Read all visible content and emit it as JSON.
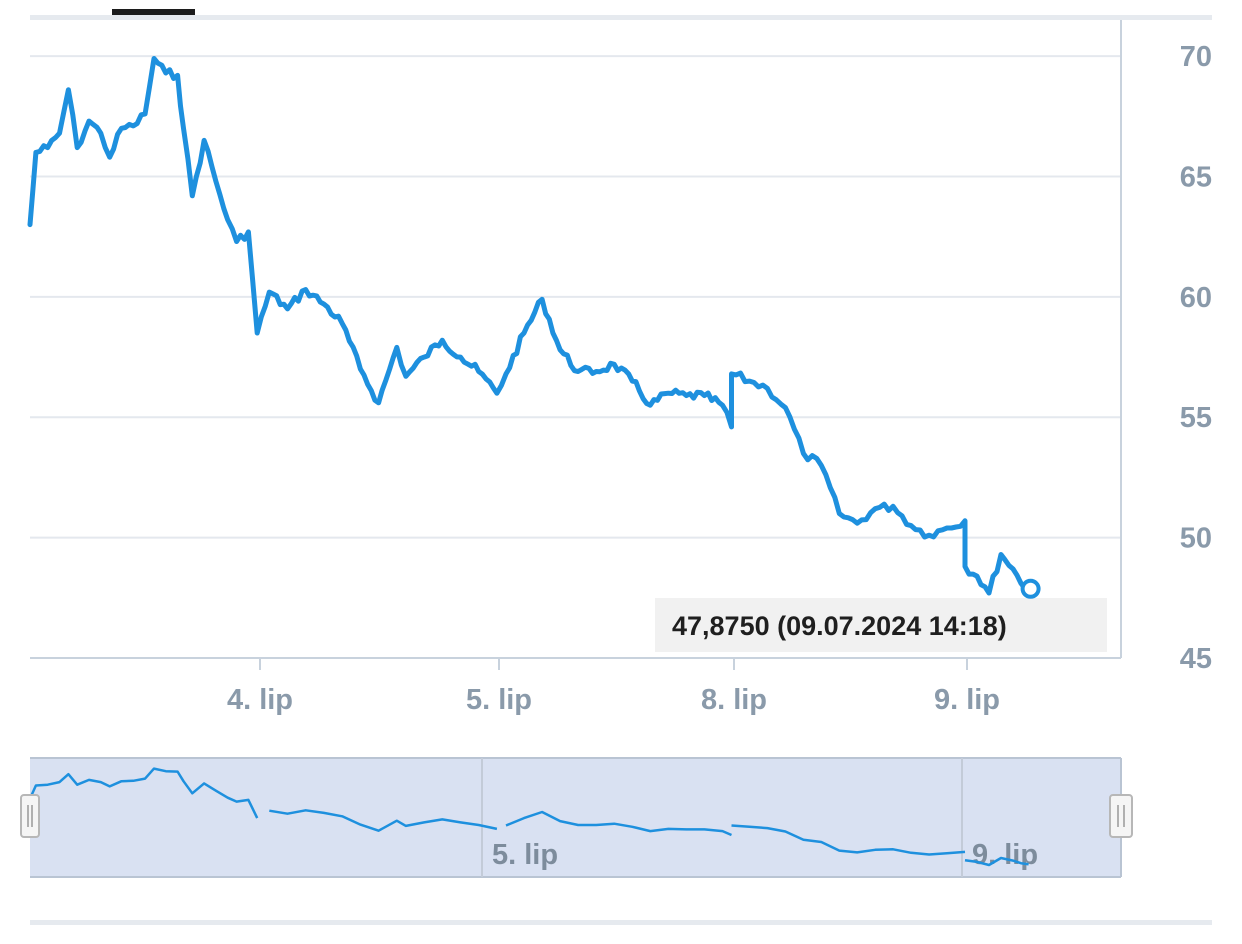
{
  "chart_data": {
    "type": "line",
    "title": "",
    "xlabel": "",
    "ylabel": "",
    "x_tick_labels": [
      "4. lip",
      "5. lip",
      "8. lip",
      "9. lip"
    ],
    "y_ticks": [
      70,
      65,
      60,
      55,
      50,
      45
    ],
    "ylim": [
      45,
      71.5
    ],
    "grid": true,
    "y_axis_side": "right",
    "series": [
      {
        "color": "#1e90de",
        "points": [
          [
            "03.07.2024 09:00",
            63.0
          ],
          [
            "03.07.2024 09:20",
            66.0
          ],
          [
            "03.07.2024 10:00",
            66.2
          ],
          [
            "03.07.2024 10:40",
            66.8
          ],
          [
            "03.07.2024 11:10",
            68.6
          ],
          [
            "03.07.2024 11:40",
            66.2
          ],
          [
            "03.07.2024 12:20",
            67.3
          ],
          [
            "03.07.2024 13:00",
            66.8
          ],
          [
            "03.07.2024 13:30",
            65.8
          ],
          [
            "03.07.2024 14:10",
            67.0
          ],
          [
            "03.07.2024 14:50",
            67.1
          ],
          [
            "03.07.2024 15:30",
            67.6
          ],
          [
            "03.07.2024 16:00",
            69.9
          ],
          [
            "03.07.2024 16:40",
            69.3
          ],
          [
            "03.07.2024 17:20",
            69.2
          ],
          [
            "03.07.2024 17:40",
            67.0
          ],
          [
            "03.07.2024 18:10",
            64.2
          ],
          [
            "03.07.2024 18:50",
            66.5
          ],
          [
            "03.07.2024 19:30",
            64.8
          ],
          [
            "03.07.2024 20:10",
            63.2
          ],
          [
            "03.07.2024 20:40",
            62.3
          ],
          [
            "03.07.2024 21:20",
            62.7
          ],
          [
            "03.07.2024 21:50",
            58.5
          ],
          [
            "04.07.2024 09:30",
            60.2
          ],
          [
            "04.07.2024 10:30",
            59.5
          ],
          [
            "04.07.2024 11:30",
            60.3
          ],
          [
            "04.07.2024 12:30",
            59.7
          ],
          [
            "04.07.2024 13:30",
            58.9
          ],
          [
            "04.07.2024 14:30",
            57.0
          ],
          [
            "04.07.2024 15:30",
            55.6
          ],
          [
            "04.07.2024 16:30",
            57.9
          ],
          [
            "04.07.2024 17:00",
            56.7
          ],
          [
            "04.07.2024 18:00",
            57.5
          ],
          [
            "04.07.2024 19:00",
            58.2
          ],
          [
            "04.07.2024 20:00",
            57.5
          ],
          [
            "04.07.2024 21:00",
            56.9
          ],
          [
            "04.07.2024 22:00",
            56.0
          ],
          [
            "05.07.2024 09:30",
            56.8
          ],
          [
            "05.07.2024 10:30",
            58.5
          ],
          [
            "05.07.2024 11:30",
            59.9
          ],
          [
            "05.07.2024 12:30",
            57.8
          ],
          [
            "05.07.2024 13:30",
            56.9
          ],
          [
            "05.07.2024 14:30",
            56.9
          ],
          [
            "05.07.2024 15:30",
            57.2
          ],
          [
            "05.07.2024 16:30",
            56.5
          ],
          [
            "05.07.2024 17:30",
            55.5
          ],
          [
            "05.07.2024 18:30",
            56.0
          ],
          [
            "05.07.2024 19:30",
            55.9
          ],
          [
            "05.07.2024 20:30",
            55.9
          ],
          [
            "05.07.2024 21:30",
            55.5
          ],
          [
            "05.07.2024 22:00",
            54.6
          ],
          [
            "08.07.2024 09:00",
            56.8
          ],
          [
            "08.07.2024 10:00",
            56.5
          ],
          [
            "08.07.2024 11:00",
            56.2
          ],
          [
            "08.07.2024 12:00",
            55.4
          ],
          [
            "08.07.2024 13:00",
            53.5
          ],
          [
            "08.07.2024 14:00",
            53.0
          ],
          [
            "08.07.2024 15:00",
            51.0
          ],
          [
            "08.07.2024 16:00",
            50.6
          ],
          [
            "08.07.2024 17:00",
            51.2
          ],
          [
            "08.07.2024 18:00",
            51.3
          ],
          [
            "08.07.2024 19:00",
            50.5
          ],
          [
            "08.07.2024 20:00",
            50.1
          ],
          [
            "08.07.2024 21:00",
            50.4
          ],
          [
            "08.07.2024 22:00",
            50.7
          ],
          [
            "09.07.2024 09:00",
            48.8
          ],
          [
            "09.07.2024 10:00",
            48.4
          ],
          [
            "09.07.2024 11:00",
            47.7
          ],
          [
            "09.07.2024 12:00",
            49.3
          ],
          [
            "09.07.2024 13:00",
            48.7
          ],
          [
            "09.07.2024 13:40",
            48.1
          ],
          [
            "09.07.2024 14:18",
            47.875
          ]
        ]
      }
    ],
    "tooltip": {
      "value": "47,8750",
      "datetime": "09.07.2024 14:18",
      "text": "47,8750 (09.07.2024 14:18)"
    },
    "navigator": {
      "tick_labels": [
        "5. lip",
        "9. lip"
      ],
      "fill_color": "#d9e1f2",
      "line_color": "#1e90de"
    }
  }
}
